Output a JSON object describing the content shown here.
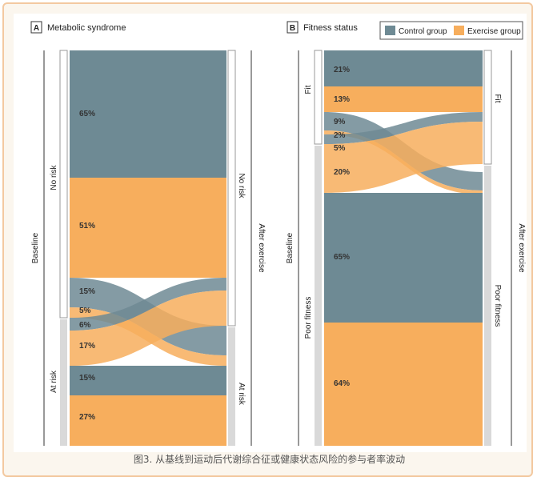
{
  "colors": {
    "control": "#6e8a94",
    "exercise": "#f7ae5d",
    "bar": "#d9d9d9",
    "text": "#222222"
  },
  "caption": "图3. 从基线到运动后代谢综合征或健康状态风险的参与者率波动",
  "legend": [
    {
      "name": "Control group",
      "color": "#6e8a94"
    },
    {
      "name": "Exercise group",
      "color": "#f7ae5d"
    }
  ],
  "panels": [
    {
      "letter": "A",
      "title": "Metabolic syndrome",
      "left_axis": "Baseline",
      "right_axis": "After exercise",
      "left_labels": [
        "No risk",
        "At risk"
      ],
      "right_labels": [
        "No risk",
        "At risk"
      ],
      "flow_labels": [
        "65%",
        "51%",
        "15%",
        "5%",
        "6%",
        "17%",
        "15%",
        "27%"
      ]
    },
    {
      "letter": "B",
      "title": "Fitness status",
      "left_axis": "Baseline",
      "right_axis": "After exercise",
      "left_labels": [
        "Fit",
        "Poor fitness"
      ],
      "right_labels": [
        "Fit",
        "Poor fitness"
      ],
      "flow_labels": [
        "21%",
        "13%",
        "9%",
        "2%",
        "5%",
        "20%",
        "65%",
        "64%"
      ]
    }
  ],
  "chart_data": [
    {
      "type": "sankey",
      "title": "Metabolic syndrome",
      "xlabel": "Baseline",
      "ylabel": "After exercise",
      "series": [
        {
          "name": "Control group",
          "flows": [
            {
              "from": "No risk",
              "to": "No risk",
              "value": 65
            },
            {
              "from": "No risk",
              "to": "At risk",
              "value": 15
            },
            {
              "from": "At risk",
              "to": "No risk",
              "value": 6
            },
            {
              "from": "At risk",
              "to": "At risk",
              "value": 15
            }
          ]
        },
        {
          "name": "Exercise group",
          "flows": [
            {
              "from": "No risk",
              "to": "No risk",
              "value": 51
            },
            {
              "from": "No risk",
              "to": "At risk",
              "value": 5
            },
            {
              "from": "At risk",
              "to": "No risk",
              "value": 17
            },
            {
              "from": "At risk",
              "to": "At risk",
              "value": 27
            }
          ]
        }
      ]
    },
    {
      "type": "sankey",
      "title": "Fitness status",
      "xlabel": "Baseline",
      "ylabel": "After exercise",
      "series": [
        {
          "name": "Control group",
          "flows": [
            {
              "from": "Fit",
              "to": "Fit",
              "value": 21
            },
            {
              "from": "Fit",
              "to": "Poor fitness",
              "value": 9
            },
            {
              "from": "Poor fitness",
              "to": "Fit",
              "value": 5
            },
            {
              "from": "Poor fitness",
              "to": "Poor fitness",
              "value": 65
            }
          ]
        },
        {
          "name": "Exercise group",
          "flows": [
            {
              "from": "Fit",
              "to": "Fit",
              "value": 13
            },
            {
              "from": "Fit",
              "to": "Poor fitness",
              "value": 2
            },
            {
              "from": "Poor fitness",
              "to": "Fit",
              "value": 20
            },
            {
              "from": "Poor fitness",
              "to": "Poor fitness",
              "value": 64
            }
          ]
        }
      ]
    }
  ]
}
